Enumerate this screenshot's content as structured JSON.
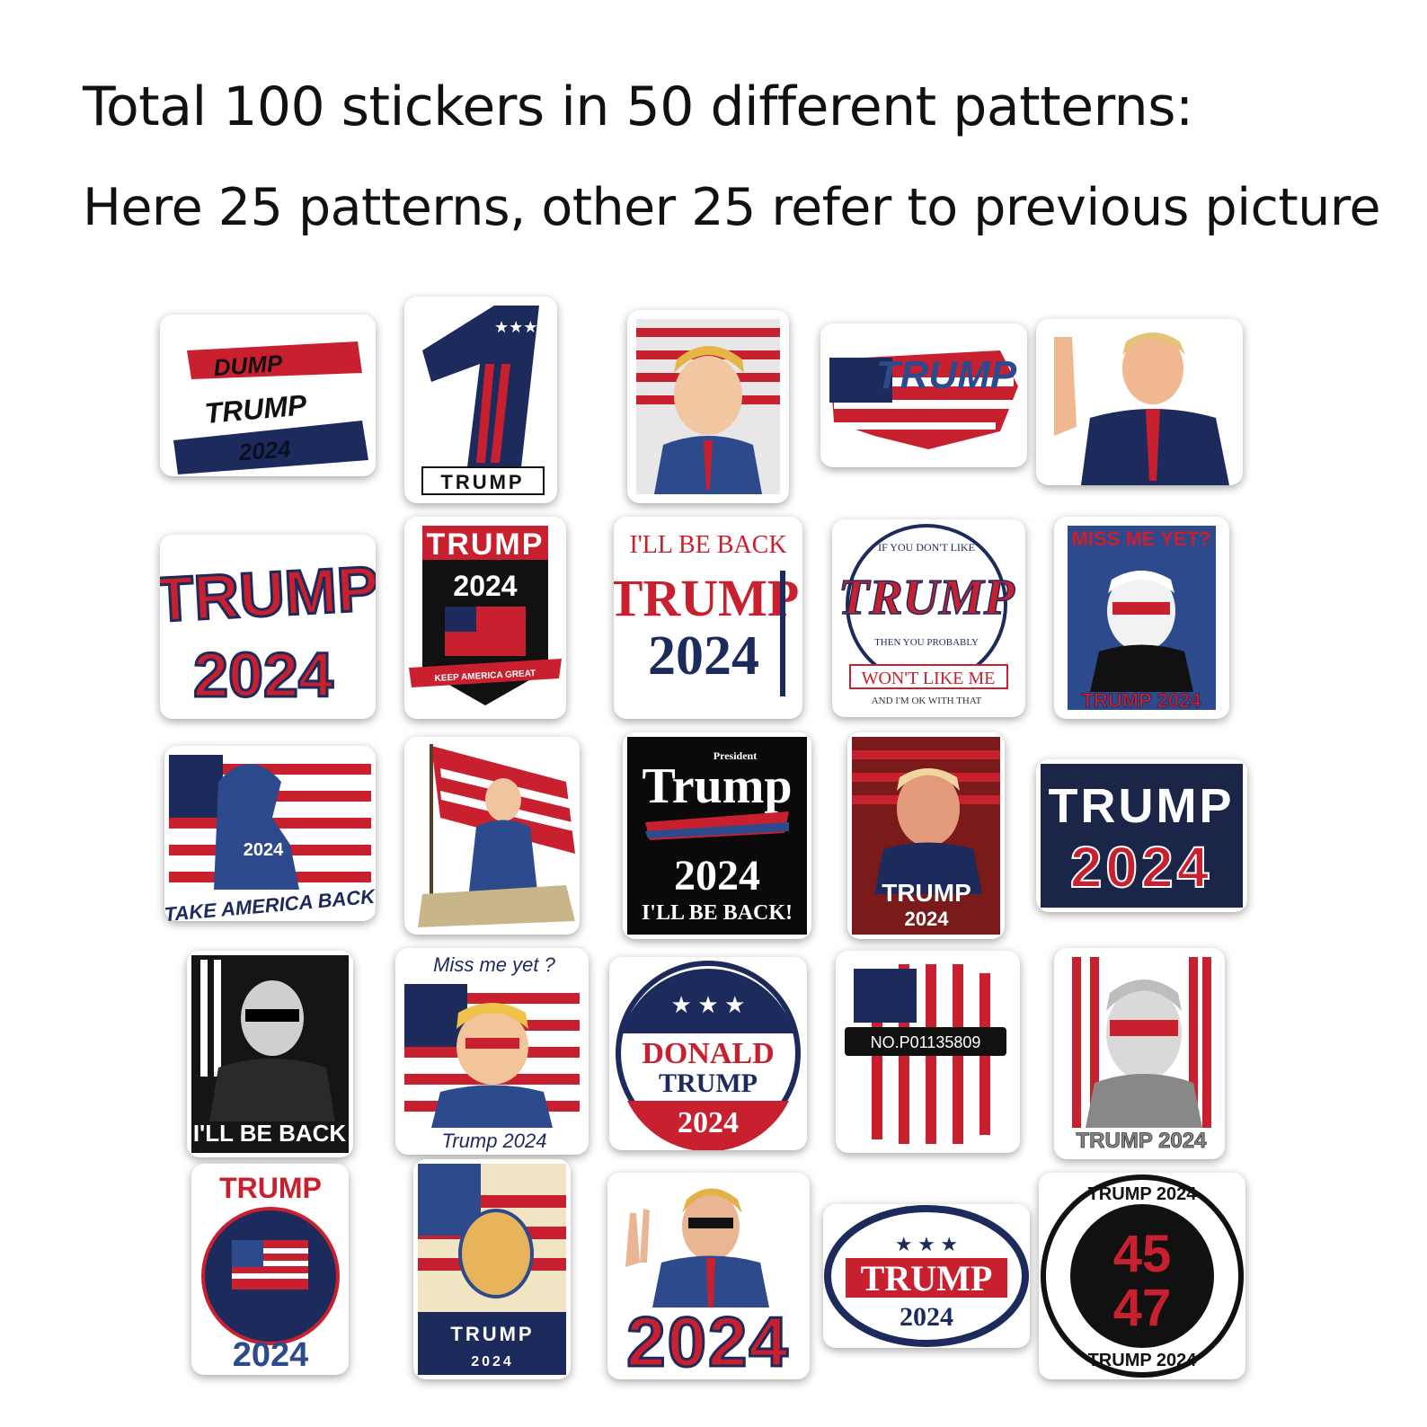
{
  "heading": {
    "line1": "Total 100 stickers in 50 different patterns:",
    "line2": "Here 25 patterns, other 25 refer to previous picture"
  },
  "colors": {
    "red": "#c8202f",
    "navy": "#1d2a5c",
    "blue": "#2d4a8c",
    "black": "#111111",
    "white": "#ffffff"
  },
  "stickers": [
    {
      "lines": [
        "DUMP",
        "TRUMP",
        "2024"
      ]
    },
    {
      "lines": [
        "TRUMP"
      ]
    },
    {
      "lines": []
    },
    {
      "lines": [
        "TRUMP"
      ]
    },
    {
      "lines": []
    },
    {
      "lines": [
        "TRUMP",
        "2024"
      ]
    },
    {
      "lines": [
        "TRUMP",
        "2024",
        "KEEP AMERICA GREAT"
      ]
    },
    {
      "lines": [
        "I'LL BE BACK",
        "TRUMP",
        "2024"
      ]
    },
    {
      "lines": [
        "IF YOU DON'T LIKE",
        "TRUMP",
        "THEN YOU PROBABLY",
        "WON'T LIKE ME",
        "AND I'M OK WITH THAT"
      ]
    },
    {
      "lines": [
        "MISS ME YET?",
        "TRUMP 2024"
      ]
    },
    {
      "lines": [
        "2024",
        "TAKE AMERICA BACK"
      ]
    },
    {
      "lines": []
    },
    {
      "lines": [
        "President",
        "Trump",
        "2024",
        "I'LL BE BACK!"
      ]
    },
    {
      "lines": [
        "TRUMP",
        "2024"
      ]
    },
    {
      "lines": [
        "TRUMP",
        "2024"
      ]
    },
    {
      "lines": [
        "I'LL BE BACK"
      ]
    },
    {
      "lines": [
        "Miss me yet ?",
        "Trump 2024"
      ]
    },
    {
      "lines": [
        "DONALD",
        "TRUMP",
        "2024"
      ]
    },
    {
      "lines": [
        "NO.P01135809"
      ]
    },
    {
      "lines": [
        "TRUMP 2024"
      ]
    },
    {
      "lines": [
        "TRUMP",
        "2024"
      ]
    },
    {
      "lines": [
        "TRUMP",
        "2024"
      ]
    },
    {
      "lines": [
        "2024"
      ]
    },
    {
      "lines": [
        "TRUMP",
        "2024"
      ]
    },
    {
      "lines": [
        "TRUMP 2024",
        "45",
        "47",
        "TRUMP 2024"
      ]
    }
  ]
}
